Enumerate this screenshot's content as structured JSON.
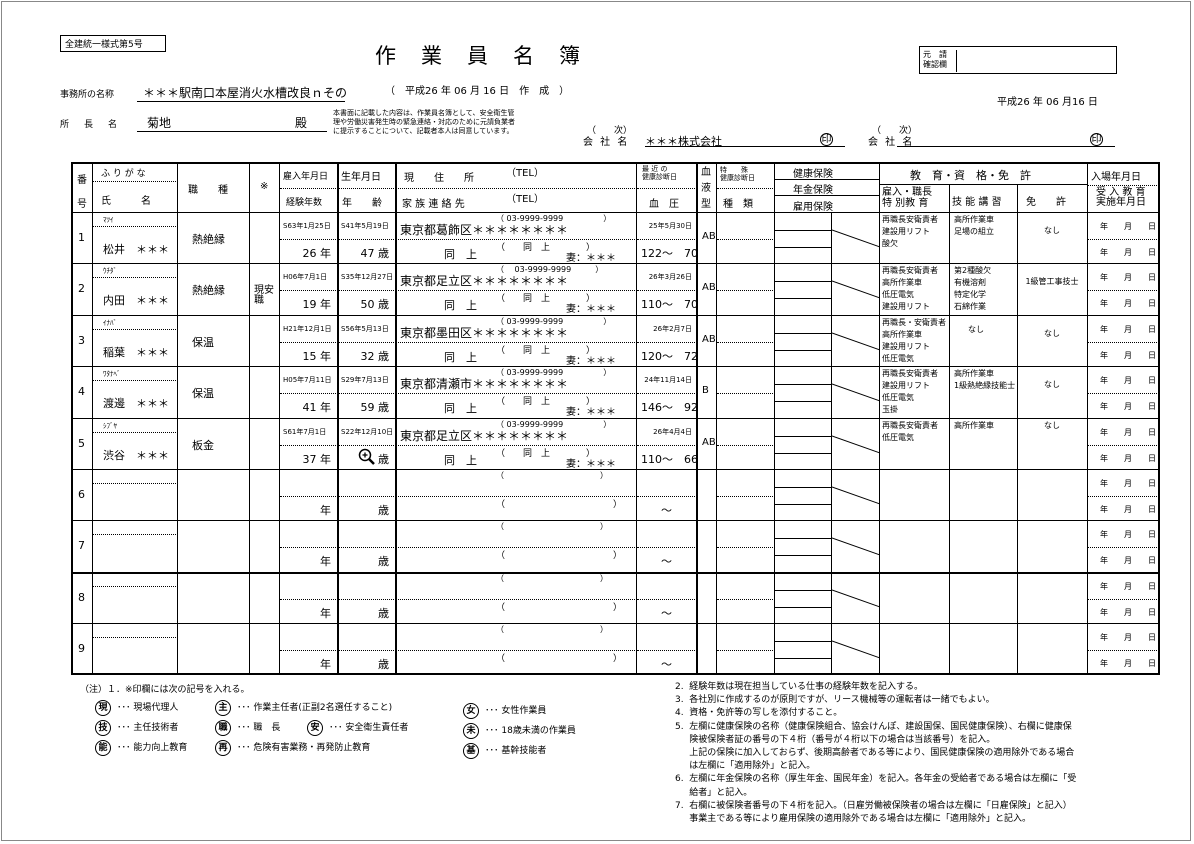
{
  "form_id": "全建統一様式第5号",
  "title": "作　業　員　名　簿",
  "created": "（　平成26 年 06 月 16 日　作　成　）",
  "office_label": "事務所の名称",
  "office_name": "＊＊＊駅南口本屋消火水槽改良ｎその",
  "director_label": "所　長　名",
  "director_name": "菊地",
  "director_suffix": "殿",
  "consent": [
    "本書面に記載した内容は、作業員名簿として、安全衛生管",
    "理や労働災害発生時の緊急連絡・対応のために元請負業者",
    "に提示することについて、記載者本人は同意しています。"
  ],
  "confirm_label": [
    "元　請",
    "確認欄"
  ],
  "date": "平成26 年 06 月16 日",
  "company1": {
    "tier": "（　　次）",
    "label": "会 社 名",
    "name": "＊＊＊株式会社",
    "seal": "印"
  },
  "company2": {
    "tier": "（　　次）",
    "label": "会 社 名",
    "name": "",
    "seal": "印"
  },
  "headers": {
    "no": [
      "番",
      "号"
    ],
    "furigana": "ふ り が な",
    "name": "氏　　　名",
    "job": "職　　種",
    "mark": "※",
    "hire": "雇入年月日",
    "exp": "経験年数",
    "birth": "生年月日",
    "age": "年　　齢",
    "address": "現　　住　　所",
    "tel": "（TEL）",
    "family": "家 族 連 絡 先",
    "tel2": "（TEL）",
    "checkup": [
      "最 近 の",
      "健康診断日"
    ],
    "bp": "血　圧",
    "blood": [
      "血",
      "液",
      "型"
    ],
    "special": [
      "特　　殊",
      "健康診断日"
    ],
    "special_kind": "種　類",
    "ins_health": "健康保険",
    "ins_pension": "年金保険",
    "ins_employment": "雇用保険",
    "edu_group": "教　育・資　格・免　許",
    "edu": [
      "雇入・職長",
      "特 別教 育"
    ],
    "skill": "技 能 講 習",
    "license": "免　　許",
    "entry": "入場年月日",
    "entry_edu": [
      "受 入 教 育",
      "実施年月日"
    ]
  },
  "rows": [
    {
      "no": "1",
      "furigana": "ﾏﾂｲ",
      "name": "松井　＊＊＊",
      "job": "熱絶縁",
      "mark": "",
      "hire": "S63年1月25日",
      "exp": "26 年",
      "birth": "S41年5月19日",
      "age": "47 歳",
      "address": "東京都葛飾区＊＊＊＊＊＊＊＊",
      "tel": "（ 03-9999-9999　　　　　）",
      "family": "同　上",
      "family_tel": "（　　同　上　　　　）",
      "relation": "妻：＊＊＊",
      "checkup": "25年5月30日",
      "bp": "122～　70",
      "blood": "AB",
      "edu": [
        "再職長安衛責者",
        "建設用リフト",
        "酸欠"
      ],
      "skill": [
        "高所作業車",
        "足場の組立"
      ],
      "license": "なし",
      "entry": "年　月　日",
      "entry_edu": "年　月　日"
    },
    {
      "no": "2",
      "furigana": "ｳﾁﾀﾞ",
      "name": "内田　＊＊＊",
      "job": "熱絶縁",
      "mark": "現安職",
      "hire": "H06年7月1日",
      "exp": "19 年",
      "birth": "S35年12月27日",
      "age": "50 歳",
      "address": "東京都足立区＊＊＊＊＊＊＊＊",
      "tel": "（　 03-9999-9999　　　）",
      "family": "同　上",
      "family_tel": "（　　同　上　　　　）",
      "relation": "妻：＊＊＊",
      "checkup": "26年3月26日",
      "bp": "110～　70",
      "blood": "AB",
      "edu": [
        "再職長安衛責者",
        "高所作業車",
        "低圧電気",
        "建設用リフト"
      ],
      "skill": [
        "第2種酸欠",
        "有機溶剤",
        "特定化学",
        "石綿作業"
      ],
      "license": "1級管工事技士",
      "entry": "年　月　日",
      "entry_edu": "年　月　日"
    },
    {
      "no": "3",
      "furigana": "ｲﾅﾊﾞ",
      "name": "稲葉　＊＊＊",
      "job": "保温",
      "mark": "",
      "hire": "H21年12月1日",
      "exp": "15 年",
      "birth": "S56年5月13日",
      "age": "32 歳",
      "address": "東京都墨田区＊＊＊＊＊＊＊＊",
      "tel": "（ 03-9999-9999　　　　　）",
      "family": "同　上",
      "family_tel": "（　　同　上　　　　）",
      "relation": "妻：＊＊＊",
      "checkup": "26年2月7日",
      "bp": "120～　72",
      "blood": "AB",
      "edu": [
        "再職長・安衛責者",
        "高所作業車",
        "建設用リフト",
        "低圧電気"
      ],
      "skill": [
        "なし"
      ],
      "license": "なし",
      "entry": "年　月　日",
      "entry_edu": "年　月　日"
    },
    {
      "no": "4",
      "furigana": "ﾜﾀﾅﾍﾞ",
      "name": "渡邊　＊＊＊",
      "job": "保温",
      "mark": "",
      "hire": "H05年7月11日",
      "exp": "41 年",
      "birth": "S29年7月13日",
      "age": "59 歳",
      "address": "東京都清瀬市＊＊＊＊＊＊＊＊",
      "tel": "（ 03-9999-9999　　　　　）",
      "family": "同　上",
      "family_tel": "（　　同　上　　　　）",
      "relation": "妻：＊＊＊",
      "checkup": "24年11月14日",
      "bp": "146～　92",
      "blood": "B",
      "edu": [
        "再職長安衛責者",
        "建設用リフト",
        "低圧電気",
        "玉掛"
      ],
      "skill": [
        "高所作業車",
        "1級熱絶縁技能士"
      ],
      "license": "なし",
      "entry": "年　月　日",
      "entry_edu": "年　月　日"
    },
    {
      "no": "5",
      "furigana": "ｼﾌﾞﾔ",
      "name": "渋谷　＊＊＊",
      "job": "板金",
      "mark": "",
      "hire": "S61年7月1日",
      "exp": "37 年",
      "birth": "S22年12月10日",
      "age": "歳",
      "age_icon": "zoom-in-cursor-icon",
      "address": "東京都足立区＊＊＊＊＊＊＊＊",
      "tel": "（ 03-9999-9999　　　　　）",
      "family": "同　上",
      "family_tel": "（　　同　上　　　　）",
      "relation": "妻：＊＊＊",
      "checkup": "26年4月4日",
      "bp": "110～　66",
      "blood": "AB",
      "edu": [
        "再職長安衛責者",
        "低圧電気"
      ],
      "skill": [
        "高所作業車"
      ],
      "license": "なし",
      "entry": "年　月　日",
      "entry_edu": "年　月　日"
    },
    {
      "no": "6",
      "exp": "年",
      "age": "歳",
      "tel": "（　　　　　　　　　　　　）",
      "family_tel": "（　　　　　　　　　　　　）",
      "bp": "～",
      "entry": "年　月　日",
      "entry_edu": "年　月　日"
    },
    {
      "no": "7",
      "exp": "年",
      "age": "歳",
      "tel": "（　　　　　　　　　　　　）",
      "family_tel": "（　　　　　　　　　　　　）",
      "bp": "～",
      "entry": "年　月　日",
      "entry_edu": "年　月　日"
    },
    {
      "no": "8",
      "exp": "年",
      "age": "歳",
      "tel": "（　　　　　　　　　　　　）",
      "family_tel": "（　　　　　　　　　　　　）",
      "bp": "～",
      "entry": "年　月　日",
      "entry_edu": "年　月　日"
    },
    {
      "no": "9",
      "exp": "年",
      "age": "歳",
      "tel": "（　　　　　　　　　　　　）",
      "family_tel": "（　　　　　　　　　　　　）",
      "bp": "～",
      "entry": "年　月　日",
      "entry_edu": "年　月　日"
    }
  ],
  "notes": {
    "head": "（注）１．※印欄には次の記号を入れる。",
    "symbols": [
      {
        "mark": "現",
        "text": "･･･ 現場代理人"
      },
      {
        "mark": "主",
        "text": "･･･ 作業主任者(正副2名選任すること)"
      },
      {
        "mark": "女",
        "text": "･･･ 女性作業員"
      },
      {
        "mark": "技",
        "text": "･･･ 主任技術者"
      },
      {
        "mark": "職",
        "text": "･･･ 職　長"
      },
      {
        "mark": "安",
        "text": "･･･ 安全衛生責任者"
      },
      {
        "mark": "未",
        "text": "･･･ 18歳未満の作業員"
      },
      {
        "mark": "能",
        "text": "･･･ 能力向上教育"
      },
      {
        "mark": "再",
        "text": "･･･ 危険有害業務・再発防止教育"
      },
      {
        "mark": "基",
        "text": "･･･ 基幹技能者"
      }
    ],
    "right": [
      "2.  経験年数は現在担当している仕事の経験年数を記入する。",
      "3.  各社別に作成するのが原則ですが、リース機械等の運転者は一緒でもよい。",
      "4.  資格・免許等の写しを添付すること。",
      "5.  左欄に健康保険の名称（健康保険組合、協会けんぽ、建設国保、国民健康保険）、右欄に健康保",
      "     険被保険者証の番号の下４桁（番号が４桁以下の場合は当該番号）を記入。",
      "     上記の保険に加入しておらず、後期高齢者である等により、国民健康保険の適用除外である場合",
      "     は左欄に「適用除外」と記入。",
      "6.  左欄に年金保険の名称（厚生年金、国民年金）を記入。各年金の受給者である場合は左欄に「受",
      "     給者」と記入。",
      "7.  右欄に被保険者番号の下４桁を記入。（日雇労働被保険者の場合は左欄に「日雇保険」と記入）",
      "     事業主である等により雇用保険の適用除外である場合は左欄に「適用除外」と記入。"
    ]
  }
}
